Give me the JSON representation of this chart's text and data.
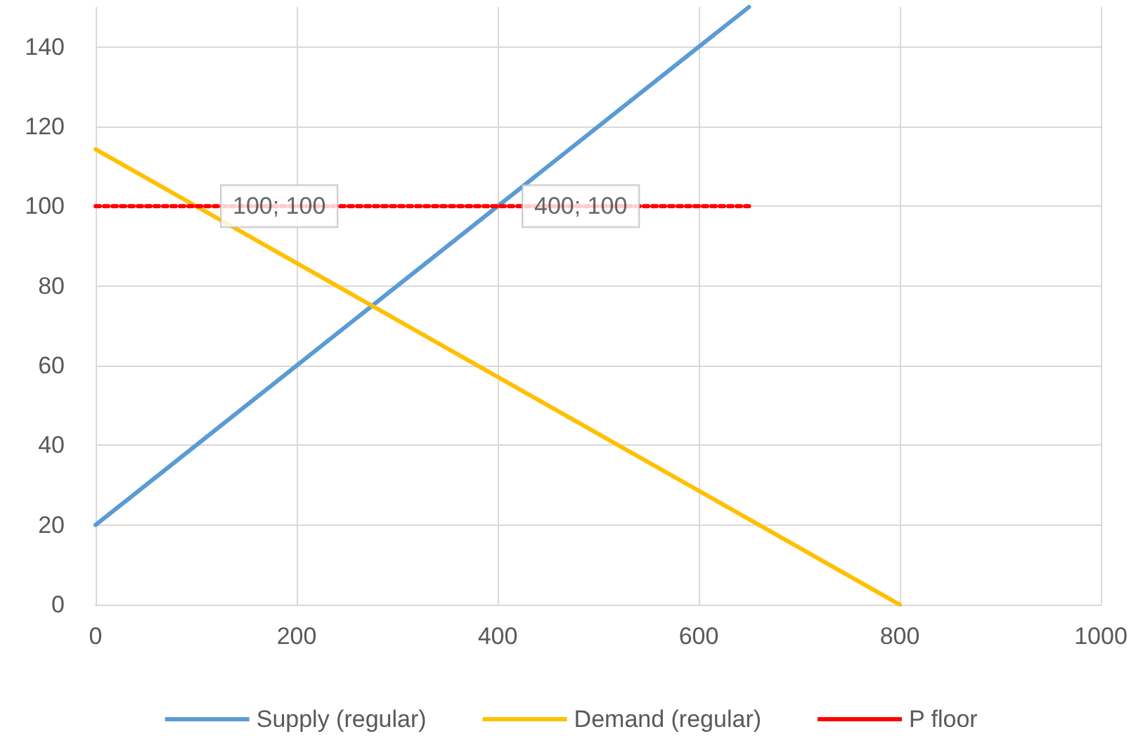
{
  "chart_data": {
    "type": "line",
    "xlim": [
      0,
      1000
    ],
    "xticks": [
      0,
      200,
      400,
      600,
      800,
      1000
    ],
    "ylim": [
      0,
      150
    ],
    "yticks": [
      0,
      20,
      40,
      60,
      80,
      100,
      120,
      140
    ],
    "grid": true,
    "legend": "bottom",
    "marker": "none",
    "series": [
      {
        "name": "Supply (regular)",
        "color": "#5b9bd5",
        "x": [
          0,
          650
        ],
        "values": [
          20,
          150
        ]
      },
      {
        "name": "Demand (regular)",
        "color": "#ffc000",
        "x": [
          0,
          800
        ],
        "values": [
          114.3,
          0
        ]
      },
      {
        "name": "P floor",
        "color": "#ff0000",
        "line_style": "dotted",
        "x": [
          0,
          650
        ],
        "values": [
          100,
          100
        ]
      }
    ],
    "annotations": [
      {
        "text": "100; 100",
        "x": 100,
        "y": 100
      },
      {
        "text": "400; 100",
        "x": 400,
        "y": 100
      }
    ]
  }
}
